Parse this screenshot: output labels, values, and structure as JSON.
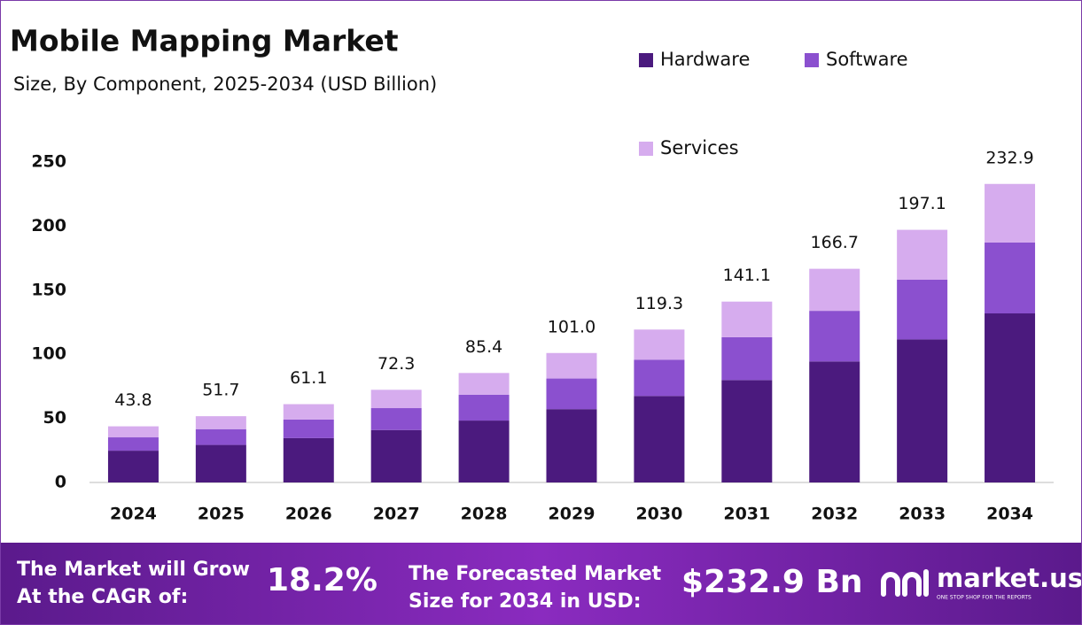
{
  "chart_data": {
    "type": "stacked-bar",
    "title": "Mobile Mapping Market",
    "subtitle": "Size, By Component, 2025-2034 (USD Billion)",
    "categories": [
      "2024",
      "2025",
      "2026",
      "2027",
      "2028",
      "2029",
      "2030",
      "2031",
      "2032",
      "2033",
      "2034"
    ],
    "series": [
      {
        "name": "Hardware",
        "color": "#4b1a7e",
        "values": [
          24.8,
          29.3,
          34.6,
          40.9,
          48.3,
          57.2,
          67.5,
          79.9,
          94.4,
          111.6,
          131.9
        ]
      },
      {
        "name": "Software",
        "color": "#8b50cf",
        "values": [
          10.4,
          12.3,
          14.5,
          17.1,
          20.2,
          23.9,
          28.3,
          33.4,
          39.5,
          46.7,
          55.3
        ]
      },
      {
        "name": "Services",
        "color": "#d6acee",
        "values": [
          8.6,
          10.1,
          12.0,
          14.3,
          16.9,
          19.9,
          23.5,
          27.8,
          32.8,
          38.8,
          45.7
        ]
      }
    ],
    "totals": [
      43.8,
      51.7,
      61.1,
      72.3,
      85.4,
      101.0,
      119.3,
      141.1,
      166.7,
      197.1,
      232.9
    ],
    "total_labels": [
      "43.8",
      "51.7",
      "61.1",
      "72.3",
      "85.4",
      "101.0",
      "119.3",
      "141.1",
      "166.7",
      "197.1",
      "232.9"
    ],
    "ylim": [
      0,
      250
    ],
    "yticks": [
      0,
      50,
      100,
      150,
      200,
      250
    ],
    "grid": false
  },
  "footer": {
    "cagr_text": [
      "The Market will Grow",
      "At the CAGR of:"
    ],
    "cagr_value": "18.2%",
    "forecast_text": [
      "The Forecasted Market",
      "Size for 2034 in USD:"
    ],
    "forecast_value": "$232.9 Bn",
    "brand": "market.us",
    "tagline": "ONE STOP SHOP FOR THE REPORTS"
  }
}
